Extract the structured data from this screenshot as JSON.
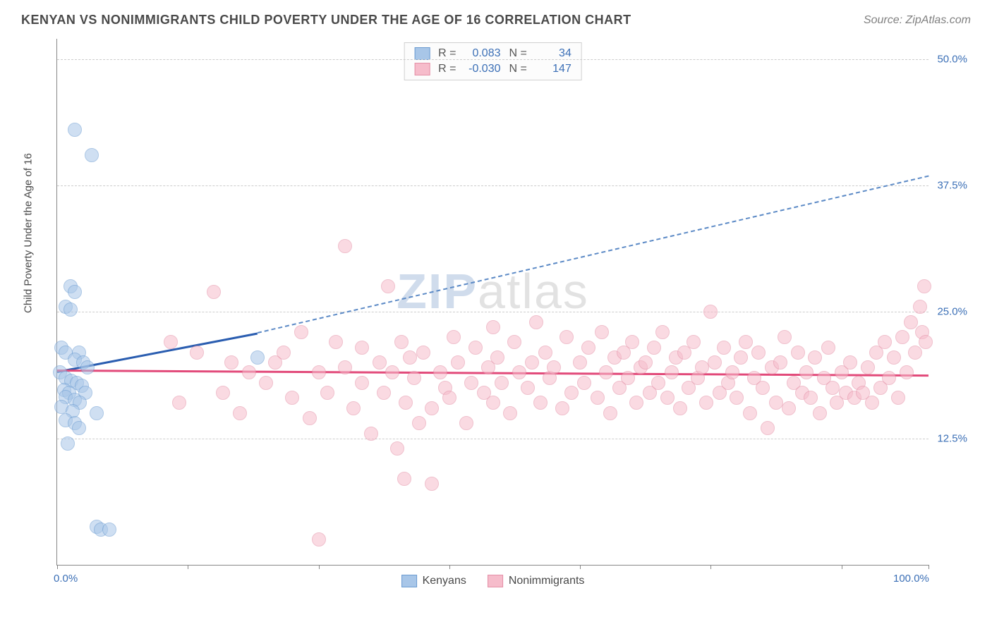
{
  "header": {
    "title": "KENYAN VS NONIMMIGRANTS CHILD POVERTY UNDER THE AGE OF 16 CORRELATION CHART",
    "source": "Source: ZipAtlas.com"
  },
  "chart": {
    "type": "scatter",
    "ylabel": "Child Poverty Under the Age of 16",
    "xlim": [
      0,
      100
    ],
    "ylim": [
      0,
      52
    ],
    "x_ticks": [
      0,
      15,
      30,
      45,
      60,
      75,
      90,
      100
    ],
    "x_tick_labels_shown": {
      "0": "0.0%",
      "100": "100.0%"
    },
    "y_gridlines": [
      12.5,
      25.0,
      37.5,
      50.0
    ],
    "y_tick_labels": [
      "12.5%",
      "25.0%",
      "37.5%",
      "50.0%"
    ],
    "background_color": "#ffffff",
    "grid_color": "#cccccc",
    "axis_color": "#888888",
    "tick_label_color": "#3b6fb6",
    "point_radius": 10,
    "point_opacity": 0.55,
    "series": [
      {
        "name": "Kenyans",
        "color_fill": "#a8c6e8",
        "color_stroke": "#6a9bd1",
        "R": "0.083",
        "N": "34",
        "trend": {
          "x1": 0,
          "y1": 19.2,
          "x2": 23,
          "y2": 23.0,
          "solid_color": "#2a5db0",
          "width": 3,
          "dash_x2": 100,
          "dash_y2": 38.5,
          "dash_color": "#5c8ac6"
        },
        "points": [
          [
            2,
            43
          ],
          [
            4,
            40.5
          ],
          [
            1.5,
            27.5
          ],
          [
            2,
            27
          ],
          [
            1,
            25.5
          ],
          [
            1.5,
            25.2
          ],
          [
            0.5,
            21.5
          ],
          [
            1,
            21
          ],
          [
            2.5,
            21
          ],
          [
            2,
            20.3
          ],
          [
            3,
            20
          ],
          [
            3.5,
            19.5
          ],
          [
            0.3,
            19
          ],
          [
            1,
            18.5
          ],
          [
            1.6,
            18.2
          ],
          [
            2.3,
            18
          ],
          [
            2.8,
            17.7
          ],
          [
            0.8,
            17.3
          ],
          [
            1.4,
            17
          ],
          [
            3.2,
            17
          ],
          [
            1,
            16.6
          ],
          [
            2,
            16.3
          ],
          [
            2.6,
            16
          ],
          [
            0.5,
            15.6
          ],
          [
            1.8,
            15.2
          ],
          [
            4.5,
            15
          ],
          [
            1,
            14.3
          ],
          [
            2,
            14
          ],
          [
            2.5,
            13.5
          ],
          [
            1.2,
            12
          ],
          [
            4.5,
            3.8
          ],
          [
            5,
            3.5
          ],
          [
            6,
            3.5
          ],
          [
            23,
            20.5
          ]
        ]
      },
      {
        "name": "Nonimmigrants",
        "color_fill": "#f6bccb",
        "color_stroke": "#e48fa6",
        "R": "-0.030",
        "N": "147",
        "trend": {
          "x1": 0,
          "y1": 19.3,
          "x2": 100,
          "y2": 18.8,
          "solid_color": "#e24a7a",
          "width": 2.5
        },
        "points": [
          [
            13,
            22
          ],
          [
            14,
            16
          ],
          [
            16,
            21
          ],
          [
            18,
            27
          ],
          [
            19,
            17
          ],
          [
            20,
            20
          ],
          [
            21,
            15
          ],
          [
            22,
            19
          ],
          [
            24,
            18
          ],
          [
            25,
            20
          ],
          [
            26,
            21
          ],
          [
            27,
            16.5
          ],
          [
            28,
            23
          ],
          [
            29,
            14.5
          ],
          [
            30,
            19
          ],
          [
            30,
            2.5
          ],
          [
            31,
            17
          ],
          [
            32,
            22
          ],
          [
            33,
            31.5
          ],
          [
            33,
            19.5
          ],
          [
            34,
            15.5
          ],
          [
            35,
            18
          ],
          [
            35,
            21.5
          ],
          [
            36,
            13
          ],
          [
            37,
            20
          ],
          [
            37.5,
            17
          ],
          [
            38,
            27.5
          ],
          [
            38.5,
            19
          ],
          [
            39,
            11.5
          ],
          [
            39.5,
            22
          ],
          [
            39.8,
            8.5
          ],
          [
            40,
            16
          ],
          [
            40.5,
            20.5
          ],
          [
            41,
            18.5
          ],
          [
            41.5,
            14
          ],
          [
            42,
            21
          ],
          [
            43,
            15.5
          ],
          [
            43,
            8
          ],
          [
            44,
            19
          ],
          [
            44.5,
            17.5
          ],
          [
            45,
            16.5
          ],
          [
            45.5,
            22.5
          ],
          [
            46,
            20
          ],
          [
            47,
            14
          ],
          [
            47.5,
            18
          ],
          [
            48,
            21.5
          ],
          [
            49,
            17
          ],
          [
            49.5,
            19.5
          ],
          [
            50,
            23.5
          ],
          [
            50,
            16
          ],
          [
            50.5,
            20.5
          ],
          [
            51,
            18
          ],
          [
            52,
            15
          ],
          [
            52.5,
            22
          ],
          [
            53,
            19
          ],
          [
            54,
            17.5
          ],
          [
            54.5,
            20
          ],
          [
            55,
            24
          ],
          [
            55.5,
            16
          ],
          [
            56,
            21
          ],
          [
            56.5,
            18.5
          ],
          [
            57,
            19.5
          ],
          [
            58,
            15.5
          ],
          [
            58.5,
            22.5
          ],
          [
            59,
            17
          ],
          [
            60,
            20
          ],
          [
            60.5,
            18
          ],
          [
            61,
            21.5
          ],
          [
            62,
            16.5
          ],
          [
            62.5,
            23
          ],
          [
            63,
            19
          ],
          [
            63.5,
            15
          ],
          [
            64,
            20.5
          ],
          [
            64.5,
            17.5
          ],
          [
            65,
            21
          ],
          [
            65.5,
            18.5
          ],
          [
            66,
            22
          ],
          [
            66.5,
            16
          ],
          [
            67,
            19.5
          ],
          [
            67.5,
            20
          ],
          [
            68,
            17
          ],
          [
            68.5,
            21.5
          ],
          [
            69,
            18
          ],
          [
            69.5,
            23
          ],
          [
            70,
            16.5
          ],
          [
            70.5,
            19
          ],
          [
            71,
            20.5
          ],
          [
            71.5,
            15.5
          ],
          [
            72,
            21
          ],
          [
            72.5,
            17.5
          ],
          [
            73,
            22
          ],
          [
            73.5,
            18.5
          ],
          [
            74,
            19.5
          ],
          [
            74.5,
            16
          ],
          [
            75,
            25
          ],
          [
            75.5,
            20
          ],
          [
            76,
            17
          ],
          [
            76.5,
            21.5
          ],
          [
            77,
            18
          ],
          [
            77.5,
            19
          ],
          [
            78,
            16.5
          ],
          [
            78.5,
            20.5
          ],
          [
            79,
            22
          ],
          [
            79.5,
            15
          ],
          [
            80,
            18.5
          ],
          [
            80.5,
            21
          ],
          [
            81,
            17.5
          ],
          [
            81.5,
            13.5
          ],
          [
            82,
            19.5
          ],
          [
            82.5,
            16
          ],
          [
            83,
            20
          ],
          [
            83.5,
            22.5
          ],
          [
            84,
            15.5
          ],
          [
            84.5,
            18
          ],
          [
            85,
            21
          ],
          [
            85.5,
            17
          ],
          [
            86,
            19
          ],
          [
            86.5,
            16.5
          ],
          [
            87,
            20.5
          ],
          [
            87.5,
            15
          ],
          [
            88,
            18.5
          ],
          [
            88.5,
            21.5
          ],
          [
            89,
            17.5
          ],
          [
            89.5,
            16
          ],
          [
            90,
            19
          ],
          [
            90.5,
            17
          ],
          [
            91,
            20
          ],
          [
            91.5,
            16.5
          ],
          [
            92,
            18
          ],
          [
            92.5,
            17
          ],
          [
            93,
            19.5
          ],
          [
            93.5,
            16
          ],
          [
            94,
            21
          ],
          [
            94.5,
            17.5
          ],
          [
            95,
            22
          ],
          [
            95.5,
            18.5
          ],
          [
            96,
            20.5
          ],
          [
            96.5,
            16.5
          ],
          [
            97,
            22.5
          ],
          [
            97.5,
            19
          ],
          [
            98,
            24
          ],
          [
            98.5,
            21
          ],
          [
            99,
            25.5
          ],
          [
            99.3,
            23
          ],
          [
            99.5,
            27.5
          ],
          [
            99.7,
            22
          ]
        ]
      }
    ],
    "bottom_legend": [
      "Kenyans",
      "Nonimmigrants"
    ],
    "watermark": {
      "z": "ZIP",
      "rest": "atlas"
    }
  }
}
